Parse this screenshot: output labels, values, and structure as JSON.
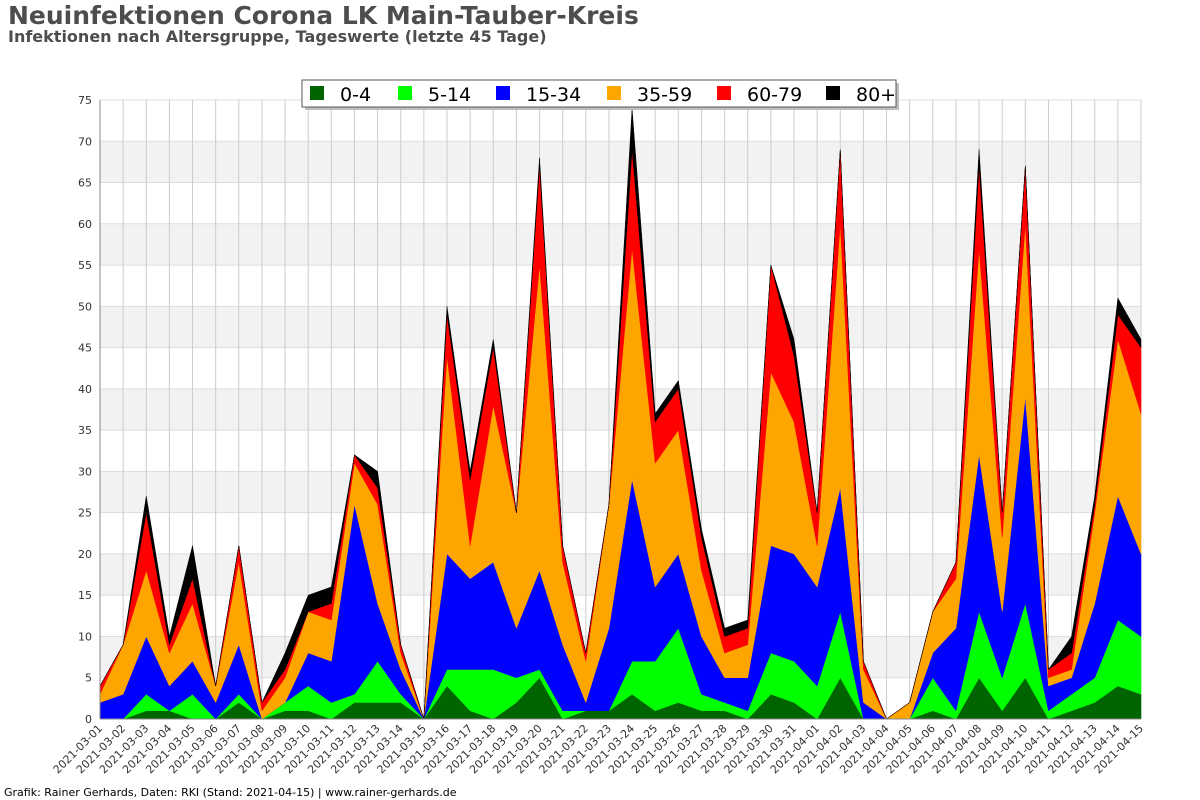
{
  "header": {
    "title": "Neuinfektionen Corona LK Main-Tauber-Kreis",
    "subtitle": "Infektionen nach Altersgruppe, Tageswerte (letzte 45 Tage)"
  },
  "footer": {
    "text": "Grafik: Rainer Gerhards, Daten: RKI (Stand: 2021-04-15) | www.rainer-gerhards.de"
  },
  "chart_data": {
    "type": "area",
    "stacked": true,
    "title": "Neuinfektionen Corona LK Main-Tauber-Kreis",
    "subtitle": "Infektionen nach Altersgruppe, Tageswerte (letzte 45 Tage)",
    "xlabel": "",
    "ylabel": "",
    "ylim": [
      0,
      75
    ],
    "yticks": [
      0,
      5,
      10,
      15,
      20,
      25,
      30,
      35,
      40,
      45,
      50,
      55,
      60,
      65,
      70,
      75
    ],
    "grid": true,
    "legend": "top-center",
    "x": [
      "2021-03-01",
      "2021-03-02",
      "2021-03-03",
      "2021-03-04",
      "2021-03-05",
      "2021-03-06",
      "2021-03-07",
      "2021-03-08",
      "2021-03-09",
      "2021-03-10",
      "2021-03-11",
      "2021-03-12",
      "2021-03-13",
      "2021-03-14",
      "2021-03-15",
      "2021-03-16",
      "2021-03-17",
      "2021-03-18",
      "2021-03-19",
      "2021-03-20",
      "2021-03-21",
      "2021-03-22",
      "2021-03-23",
      "2021-03-24",
      "2021-03-25",
      "2021-03-26",
      "2021-03-27",
      "2021-03-28",
      "2021-03-29",
      "2021-03-30",
      "2021-03-31",
      "2021-04-01",
      "2021-04-02",
      "2021-04-03",
      "2021-04-04",
      "2021-04-05",
      "2021-04-06",
      "2021-04-07",
      "2021-04-08",
      "2021-04-09",
      "2021-04-10",
      "2021-04-11",
      "2021-04-12",
      "2021-04-13",
      "2021-04-14",
      "2021-04-15"
    ],
    "series": [
      {
        "name": "0-4",
        "color": "#006400",
        "values": [
          0,
          0,
          1,
          1,
          0,
          0,
          2,
          0,
          1,
          1,
          0,
          2,
          2,
          2,
          0,
          4,
          1,
          0,
          2,
          5,
          0,
          1,
          1,
          3,
          1,
          2,
          1,
          1,
          0,
          3,
          2,
          0,
          5,
          0,
          0,
          0,
          1,
          0,
          5,
          1,
          5,
          0,
          1,
          2,
          4,
          3
        ]
      },
      {
        "name": "5-14",
        "color": "#00ff00",
        "values": [
          0,
          0,
          2,
          0,
          3,
          0,
          1,
          0,
          1,
          3,
          2,
          1,
          5,
          1,
          0,
          2,
          5,
          6,
          3,
          1,
          1,
          0,
          0,
          4,
          6,
          9,
          2,
          1,
          1,
          5,
          5,
          4,
          8,
          0,
          0,
          0,
          4,
          1,
          8,
          4,
          9,
          1,
          2,
          3,
          8,
          7
        ]
      },
      {
        "name": "15-34",
        "color": "#0000ff",
        "values": [
          2,
          3,
          7,
          3,
          4,
          2,
          6,
          0,
          0,
          4,
          5,
          23,
          7,
          3,
          0,
          14,
          11,
          13,
          6,
          12,
          8,
          1,
          10,
          22,
          9,
          9,
          7,
          3,
          4,
          13,
          13,
          12,
          15,
          2,
          0,
          0,
          3,
          10,
          19,
          8,
          25,
          3,
          2,
          9,
          15,
          10
        ]
      },
      {
        "name": "35-59",
        "color": "#ffa500",
        "values": [
          1,
          6,
          8,
          4,
          7,
          2,
          10,
          1,
          3,
          5,
          5,
          5,
          12,
          2,
          0,
          24,
          4,
          19,
          14,
          37,
          10,
          5,
          15,
          28,
          15,
          15,
          8,
          3,
          4,
          21,
          16,
          5,
          32,
          4,
          0,
          2,
          5,
          6,
          25,
          9,
          21,
          1,
          1,
          11,
          19,
          17
        ]
      },
      {
        "name": "60-79",
        "color": "#ff0000",
        "values": [
          1,
          0,
          7,
          1,
          3,
          0,
          2,
          1,
          1,
          0,
          2,
          1,
          2,
          1,
          0,
          5,
          8,
          7,
          0,
          12,
          2,
          1,
          0,
          12,
          5,
          5,
          4,
          2,
          2,
          13,
          8,
          4,
          9,
          1,
          0,
          0,
          0,
          2,
          10,
          3,
          7,
          1,
          2,
          1,
          3,
          8
        ]
      },
      {
        "name": "80+",
        "color": "#000000",
        "values": [
          0,
          0,
          2,
          1,
          4,
          0,
          0,
          0,
          2,
          2,
          2,
          0,
          2,
          0,
          0,
          1,
          1,
          1,
          0,
          1,
          0,
          0,
          0,
          5,
          1,
          1,
          1,
          1,
          1,
          0,
          2,
          0,
          0,
          0,
          0,
          0,
          0,
          0,
          2,
          0,
          0,
          0,
          2,
          1,
          2,
          1
        ]
      }
    ]
  }
}
